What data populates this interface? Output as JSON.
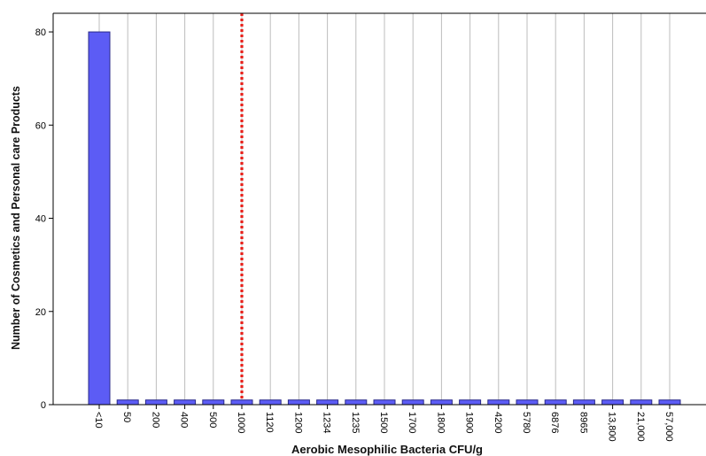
{
  "chart_data": {
    "type": "bar",
    "title": "",
    "xlabel": "Aerobic Mesophilic Bacteria CFU/g",
    "ylabel": "Number of Cosmetics and Personal care Products",
    "ylim": [
      0,
      84
    ],
    "yticks": [
      0,
      20,
      40,
      60,
      80
    ],
    "grid": "vertical",
    "categories": [
      "<10",
      "50",
      "200",
      "400",
      "500",
      "1000",
      "1120",
      "1200",
      "1234",
      "1235",
      "1500",
      "1700",
      "1800",
      "1900",
      "4200",
      "5780",
      "6876",
      "8965",
      "13,800",
      "21,000",
      "57,000"
    ],
    "values": [
      80,
      1,
      1,
      1,
      1,
      1,
      1,
      1,
      1,
      1,
      1,
      1,
      1,
      1,
      1,
      1,
      1,
      1,
      1,
      1,
      1
    ],
    "reference_line": {
      "category": "1000",
      "style": "dotted",
      "color": "#e8201a"
    },
    "bar_color": "#5c5cf5",
    "bar_edge_color": "#2a2a8a"
  }
}
